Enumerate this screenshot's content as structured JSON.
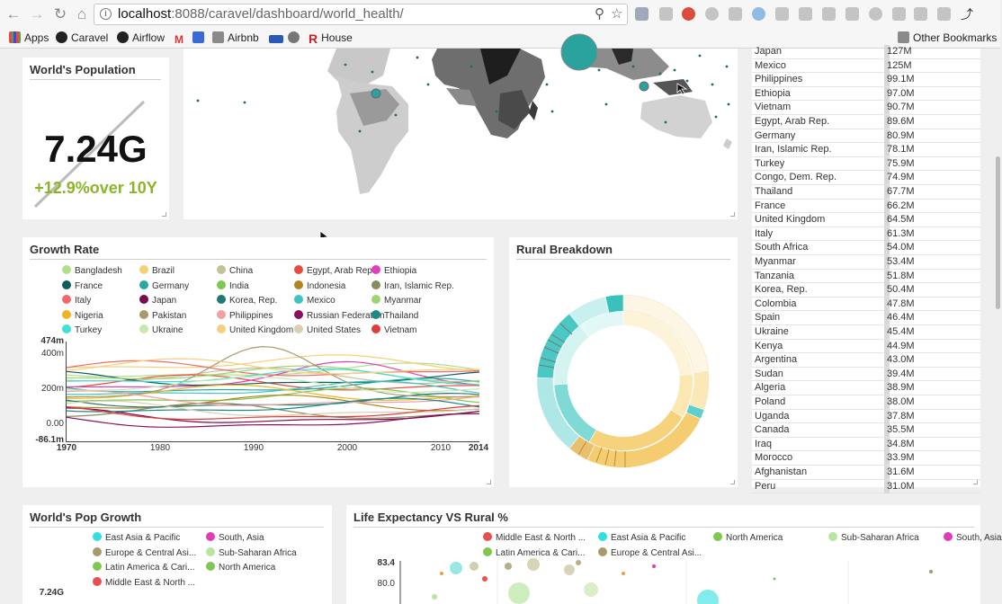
{
  "browser": {
    "url_host": "localhost",
    "url_rest": ":8088/caravel/dashboard/world_health/",
    "bookmarks": [
      "Apps",
      "Caravel",
      "Airflow",
      "Airbnb",
      "House",
      "Other Bookmarks"
    ]
  },
  "world_population": {
    "title": "World's Population",
    "value": "7.24G",
    "change": "+12.9%over 10Y",
    "change_color": "#8bb527"
  },
  "growth_rate": {
    "title": "Growth Rate",
    "legend": [
      {
        "name": "Bangladesh",
        "color": "#b2df8a"
      },
      {
        "name": "Brazil",
        "color": "#f5d07a"
      },
      {
        "name": "China",
        "color": "#c2c29a"
      },
      {
        "name": "Egypt, Arab Rep.",
        "color": "#e74c3c"
      },
      {
        "name": "Ethiopia",
        "color": "#e040b8"
      },
      {
        "name": "France",
        "color": "#0f5e5c"
      },
      {
        "name": "Germany",
        "color": "#2aa7a4"
      },
      {
        "name": "India",
        "color": "#7ec850"
      },
      {
        "name": "Indonesia",
        "color": "#b0851f"
      },
      {
        "name": "Iran, Islamic Rep.",
        "color": "#8a8a60"
      },
      {
        "name": "Italy",
        "color": "#f06a6a"
      },
      {
        "name": "Japan",
        "color": "#7a0a4a"
      },
      {
        "name": "Korea, Rep.",
        "color": "#1f7a74"
      },
      {
        "name": "Mexico",
        "color": "#3fc4c0"
      },
      {
        "name": "Myanmar",
        "color": "#9fd474"
      },
      {
        "name": "Nigeria",
        "color": "#f0b420"
      },
      {
        "name": "Pakistan",
        "color": "#a89a6a"
      },
      {
        "name": "Philippines",
        "color": "#f2a0a0"
      },
      {
        "name": "Russian Federation",
        "color": "#8a1060"
      },
      {
        "name": "Thailand",
        "color": "#1a8a86"
      },
      {
        "name": "Turkey",
        "color": "#40e0d8"
      },
      {
        "name": "Ukraine",
        "color": "#c8e8b0"
      },
      {
        "name": "United Kingdom",
        "color": "#f6d080"
      },
      {
        "name": "United States",
        "color": "#d8d0b0"
      },
      {
        "name": "Vietnam",
        "color": "#e03c3c"
      }
    ],
    "y_ticks": [
      "474m",
      "400m",
      "200m",
      "0.00",
      "-86.1m"
    ],
    "x_ticks": [
      "1970",
      "1980",
      "1990",
      "2000",
      "2010",
      "2014"
    ]
  },
  "rural": {
    "title": "Rural Breakdown"
  },
  "countries": [
    {
      "name": "Japan",
      "value": "127M"
    },
    {
      "name": "Mexico",
      "value": "125M"
    },
    {
      "name": "Philippines",
      "value": "99.1M"
    },
    {
      "name": "Ethiopia",
      "value": "97.0M"
    },
    {
      "name": "Vietnam",
      "value": "90.7M"
    },
    {
      "name": "Egypt, Arab Rep.",
      "value": "89.6M"
    },
    {
      "name": "Germany",
      "value": "80.9M"
    },
    {
      "name": "Iran, Islamic Rep.",
      "value": "78.1M"
    },
    {
      "name": "Turkey",
      "value": "75.9M"
    },
    {
      "name": "Congo, Dem. Rep.",
      "value": "74.9M"
    },
    {
      "name": "Thailand",
      "value": "67.7M"
    },
    {
      "name": "France",
      "value": "66.2M"
    },
    {
      "name": "United Kingdom",
      "value": "64.5M"
    },
    {
      "name": "Italy",
      "value": "61.3M"
    },
    {
      "name": "South Africa",
      "value": "54.0M"
    },
    {
      "name": "Myanmar",
      "value": "53.4M"
    },
    {
      "name": "Tanzania",
      "value": "51.8M"
    },
    {
      "name": "Korea, Rep.",
      "value": "50.4M"
    },
    {
      "name": "Colombia",
      "value": "47.8M"
    },
    {
      "name": "Spain",
      "value": "46.4M"
    },
    {
      "name": "Ukraine",
      "value": "45.4M"
    },
    {
      "name": "Kenya",
      "value": "44.9M"
    },
    {
      "name": "Argentina",
      "value": "43.0M"
    },
    {
      "name": "Sudan",
      "value": "39.4M"
    },
    {
      "name": "Algeria",
      "value": "38.9M"
    },
    {
      "name": "Poland",
      "value": "38.0M"
    },
    {
      "name": "Uganda",
      "value": "37.8M"
    },
    {
      "name": "Canada",
      "value": "35.5M"
    },
    {
      "name": "Iraq",
      "value": "34.8M"
    },
    {
      "name": "Morocco",
      "value": "33.9M"
    },
    {
      "name": "Afghanistan",
      "value": "31.6M"
    },
    {
      "name": "Peru",
      "value": "31.0M"
    }
  ],
  "pop_growth": {
    "title": "World's Pop Growth",
    "legend": [
      {
        "name": "East Asia & Pacific",
        "color": "#2ee0e0"
      },
      {
        "name": "South, Asia",
        "color": "#e03cb4"
      },
      {
        "name": "Europe & Central Asi...",
        "color": "#a89a6a"
      },
      {
        "name": "Sub-Saharan Africa",
        "color": "#b8e6a0"
      },
      {
        "name": "Latin America & Cari...",
        "color": "#7ec850"
      },
      {
        "name": "North America",
        "color": "#7ec850"
      },
      {
        "name": "Middle East & North ...",
        "color": "#e85050"
      }
    ],
    "y_top": "7.24G"
  },
  "life": {
    "title": "Life Expectancy VS Rural %",
    "legend": [
      {
        "name": "Middle East & North ...",
        "color": "#e85050"
      },
      {
        "name": "East Asia & Pacific",
        "color": "#2ee0e0"
      },
      {
        "name": "North America",
        "color": "#7ec850"
      },
      {
        "name": "Sub-Saharan Africa",
        "color": "#b8e6a0"
      },
      {
        "name": "South, Asia",
        "color": "#e03cb4"
      },
      {
        "name": "Latin America & Cari...",
        "color": "#7ec850"
      },
      {
        "name": "Europe & Central Asi...",
        "color": "#a89a6a"
      }
    ],
    "y_ticks": [
      "83.4",
      "80.0"
    ]
  }
}
